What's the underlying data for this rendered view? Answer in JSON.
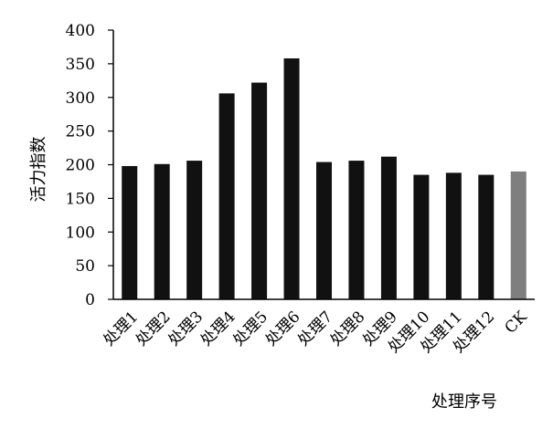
{
  "chart_data": {
    "type": "bar",
    "categories": [
      "处理1",
      "处理2",
      "处理3",
      "处理4",
      "处理5",
      "处理6",
      "处理7",
      "处理8",
      "处理9",
      "处理10",
      "处理11",
      "处理12",
      "CK"
    ],
    "values": [
      198,
      201,
      206,
      306,
      322,
      358,
      204,
      206,
      212,
      185,
      188,
      185,
      190
    ],
    "xlabel": "处理序号",
    "ylabel": "活力指数",
    "ylim": [
      0,
      400
    ],
    "yticks": [
      "0",
      "50",
      "100",
      "150",
      "200",
      "250",
      "300",
      "350",
      "400"
    ],
    "grid": false,
    "bar_color": "#111111",
    "highlight_color": "#7f7f7f",
    "highlight_category": "CK"
  }
}
